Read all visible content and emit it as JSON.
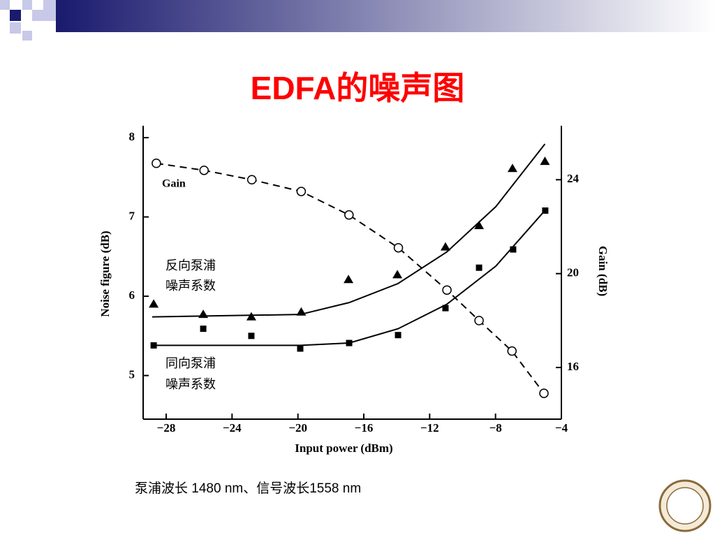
{
  "slide": {
    "title": "EDFA的噪声图",
    "caption": "泵浦波长 1480 nm、信号波长1558 nm"
  },
  "chart_data": {
    "type": "scatter",
    "xlabel": "Input power (dBm)",
    "ylabel": "Noise figure (dB)",
    "y2label": "Gain (dB)",
    "xlim": [
      -29.4,
      -4
    ],
    "ylim": [
      4.45,
      8.15
    ],
    "y2lim": [
      13.8,
      26.3
    ],
    "xticks": [
      {
        "value": -28,
        "label": "−28"
      },
      {
        "value": -24,
        "label": "−24"
      },
      {
        "value": -20,
        "label": "−20"
      },
      {
        "value": -16,
        "label": "−16"
      },
      {
        "value": -12,
        "label": "−12"
      },
      {
        "value": -8,
        "label": "−8"
      },
      {
        "value": -4,
        "label": "−4"
      }
    ],
    "yticks": [
      5,
      6,
      7,
      8
    ],
    "y2ticks": [
      16,
      20,
      24
    ],
    "annotations": [
      "Gain",
      "反向泵浦",
      "噪声系数",
      "同向泵浦",
      "噪声系数"
    ],
    "series": [
      {
        "marker": "circle",
        "line": "dashed",
        "axis": "y2",
        "color": "#000000",
        "x": [
          -28.6,
          -25.7,
          -22.8,
          -19.8,
          -16.9,
          -13.9,
          -10.95,
          -9.0,
          -7.0,
          -5.06
        ],
        "values": [
          24.7,
          24.4,
          24.0,
          23.5,
          22.5,
          21.1,
          19.3,
          18.0,
          16.7,
          14.9
        ]
      },
      {
        "marker": "triangle",
        "color": "#000000",
        "x": [
          -28.76,
          -25.75,
          -22.83,
          -19.8,
          -16.93,
          -13.96,
          -11.04,
          -9.0,
          -6.97,
          -5.0
        ],
        "values": [
          5.9,
          5.77,
          5.74,
          5.8,
          6.21,
          6.27,
          6.62,
          6.89,
          7.61,
          7.7
        ]
      },
      {
        "marker": "square",
        "color": "#000000",
        "x": [
          -28.76,
          -25.75,
          -22.83,
          -19.86,
          -16.89,
          -13.92,
          -11.04,
          -9.0,
          -6.93,
          -4.98
        ],
        "values": [
          5.38,
          5.59,
          5.5,
          5.34,
          5.41,
          5.51,
          5.85,
          6.36,
          6.59,
          7.08
        ]
      },
      {
        "line": "solid",
        "color": "#000000",
        "x": [
          -28.85,
          -19.86,
          -16.89,
          -13.92,
          -10.95,
          -7.98,
          -5.0
        ],
        "values": [
          5.74,
          5.77,
          5.92,
          6.16,
          6.56,
          7.13,
          7.92
        ]
      },
      {
        "line": "solid",
        "color": "#000000",
        "x": [
          -28.85,
          -19.86,
          -16.89,
          -13.92,
          -10.95,
          -7.98,
          -4.92
        ],
        "values": [
          5.38,
          5.38,
          5.41,
          5.59,
          5.9,
          6.38,
          7.1
        ]
      }
    ]
  }
}
